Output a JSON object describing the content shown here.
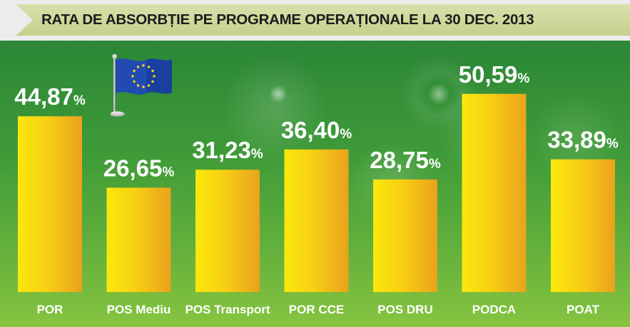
{
  "header": {
    "title": "RATA DE ABSORBȚIE PE PROGRAME OPERAȚIONALE LA 30 DEC. 2013"
  },
  "chart_data": {
    "type": "bar",
    "title": "RATA DE ABSORBȚIE PE PROGRAME OPERAȚIONALE LA 30 DEC. 2013",
    "categories": [
      "POR",
      "POS Mediu",
      "POS Transport",
      "POR CCE",
      "POS DRU",
      "PODCA",
      "POAT"
    ],
    "values": [
      44.87,
      26.65,
      31.23,
      36.4,
      28.75,
      50.59,
      33.89
    ],
    "value_labels": [
      "44,87",
      "26,65",
      "31,23",
      "36,40",
      "28,75",
      "50,59",
      "33,89"
    ],
    "unit": "%",
    "ylim": [
      0,
      55
    ],
    "grid": false,
    "legend": "none",
    "colors": {
      "bar_light": "#fbe80c",
      "bar_dark": "#e9a21d",
      "background_top": "#2b8636",
      "background_bottom": "#86c540",
      "ribbon": "#cdd597",
      "text": "#ffffff"
    }
  },
  "decoration": {
    "icon": "eu-flag-icon"
  }
}
